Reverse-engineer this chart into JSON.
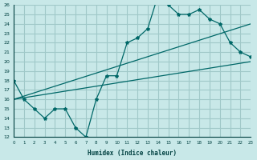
{
  "xlabel": "Humidex (Indice chaleur)",
  "ylabel": "",
  "xlim": [
    0,
    23
  ],
  "ylim": [
    12,
    26
  ],
  "xticks": [
    0,
    1,
    2,
    3,
    4,
    5,
    6,
    7,
    8,
    9,
    10,
    11,
    12,
    13,
    14,
    15,
    16,
    17,
    18,
    19,
    20,
    21,
    22,
    23
  ],
  "yticks": [
    12,
    13,
    14,
    15,
    16,
    17,
    18,
    19,
    20,
    21,
    22,
    23,
    24,
    25,
    26
  ],
  "bg_color": "#c8e8e8",
  "grid_color": "#a0c8c8",
  "line_color": "#006868",
  "line1_x": [
    0,
    1,
    2,
    3,
    4,
    5,
    6,
    7,
    8,
    9,
    10,
    11,
    12,
    13,
    14,
    15,
    16,
    17,
    18,
    19,
    20,
    21,
    22,
    23
  ],
  "line1_y": [
    18,
    16,
    15,
    14,
    15,
    15,
    13,
    12,
    16,
    18.5,
    18.5,
    22,
    22.5,
    23.5,
    27,
    26,
    25,
    25,
    25.5,
    24.5,
    24,
    22,
    21,
    20.5
  ],
  "line2_x": [
    0,
    23
  ],
  "line2_y": [
    16,
    20
  ],
  "line3_x": [
    0,
    23
  ],
  "line3_y": [
    16,
    24
  ]
}
